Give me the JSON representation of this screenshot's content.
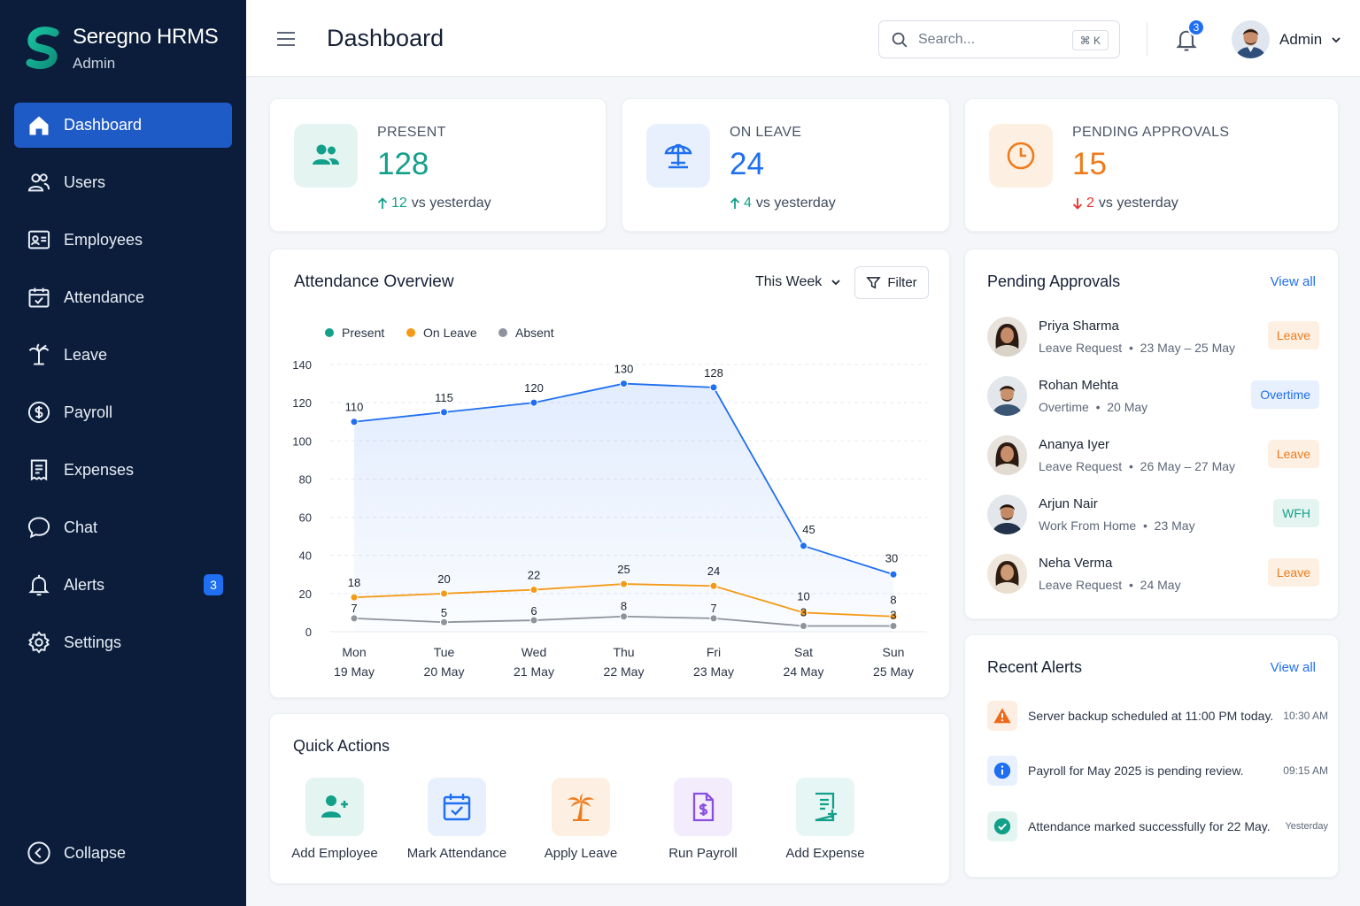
{
  "brand": {
    "name": "Seregno HRMS",
    "role": "Admin"
  },
  "sidebar": {
    "items": [
      {
        "label": "Dashboard",
        "icon": "home-icon",
        "active": true
      },
      {
        "label": "Users",
        "icon": "users-icon"
      },
      {
        "label": "Employees",
        "icon": "id-card-icon"
      },
      {
        "label": "Attendance",
        "icon": "calendar-check-icon"
      },
      {
        "label": "Leave",
        "icon": "palm-tree-icon"
      },
      {
        "label": "Payroll",
        "icon": "dollar-circle-icon"
      },
      {
        "label": "Expenses",
        "icon": "receipt-icon"
      },
      {
        "label": "Chat",
        "icon": "chat-bubble-icon"
      },
      {
        "label": "Alerts",
        "icon": "bell-icon",
        "badge": "3"
      },
      {
        "label": "Settings",
        "icon": "gear-icon"
      }
    ],
    "collapse_label": "Collapse"
  },
  "header": {
    "title": "Dashboard",
    "search_placeholder": "Search...",
    "search_shortcut": "⌘ K",
    "notification_count": "3",
    "user_name": "Admin"
  },
  "stats": [
    {
      "label": "PRESENT",
      "value": "128",
      "delta": "12",
      "delta_dir": "up",
      "delta_text": "vs yesterday",
      "color": "#13a08a"
    },
    {
      "label": "ON LEAVE",
      "value": "24",
      "delta": "4",
      "delta_dir": "up",
      "delta_text": "vs yesterday",
      "color": "#1f6ff2"
    },
    {
      "label": "PENDING APPROVALS",
      "value": "15",
      "delta": "2",
      "delta_dir": "down",
      "delta_text": "vs yesterday",
      "color": "#ef7a1a"
    }
  ],
  "attendance": {
    "title": "Attendance Overview",
    "period": "This Week",
    "filter_label": "Filter"
  },
  "chart_data": {
    "type": "line",
    "categories": [
      "Mon",
      "Tue",
      "Wed",
      "Thu",
      "Fri",
      "Sat",
      "Sun"
    ],
    "dates": [
      "19 May",
      "20 May",
      "21 May",
      "22 May",
      "23 May",
      "24 May",
      "25 May"
    ],
    "series": [
      {
        "name": "Present",
        "values": [
          110,
          115,
          120,
          130,
          128,
          45,
          30
        ],
        "color": "#1f6ff2"
      },
      {
        "name": "On Leave",
        "values": [
          18,
          20,
          22,
          25,
          24,
          10,
          8
        ],
        "color": "#f59a16"
      },
      {
        "name": "Absent",
        "values": [
          7,
          5,
          6,
          8,
          7,
          3,
          3
        ],
        "color": "#8e939c"
      }
    ],
    "legend_colors": [
      "#13a08a",
      "#f59a16",
      "#8e939c"
    ],
    "yticks": [
      0,
      20,
      40,
      60,
      80,
      100,
      120,
      140
    ],
    "ylim": [
      0,
      140
    ],
    "grid": true,
    "legend": "top-left"
  },
  "approvals": {
    "title": "Pending Approvals",
    "view_all": "View all",
    "items": [
      {
        "name": "Priya Sharma",
        "type": "Leave Request",
        "dates": "23 May – 25 May",
        "tag": "Leave"
      },
      {
        "name": "Rohan Mehta",
        "type": "Overtime",
        "dates": "20 May",
        "tag": "Overtime"
      },
      {
        "name": "Ananya Iyer",
        "type": "Leave Request",
        "dates": "26 May – 27 May",
        "tag": "Leave"
      },
      {
        "name": "Arjun Nair",
        "type": "Work From Home",
        "dates": "23 May",
        "tag": "WFH"
      },
      {
        "name": "Neha Verma",
        "type": "Leave Request",
        "dates": "24 May",
        "tag": "Leave"
      }
    ]
  },
  "alerts": {
    "title": "Recent Alerts",
    "view_all": "View all",
    "items": [
      {
        "text": "Server backup scheduled at 11:00 PM today.",
        "time": "10:30 AM",
        "icon": "warning-icon"
      },
      {
        "text": "Payroll for May 2025 is pending review.",
        "time": "09:15 AM",
        "icon": "info-icon"
      },
      {
        "text": "Attendance marked successfully for 22 May.",
        "time": "Yesterday",
        "icon": "check-icon"
      }
    ]
  },
  "quick_actions": {
    "title": "Quick Actions",
    "items": [
      {
        "label": "Add Employee",
        "icon": "user-plus-icon"
      },
      {
        "label": "Mark Attendance",
        "icon": "calendar-check-icon"
      },
      {
        "label": "Apply Leave",
        "icon": "palm-tree-icon"
      },
      {
        "label": "Run Payroll",
        "icon": "payroll-doc-icon"
      },
      {
        "label": "Add Expense",
        "icon": "expense-doc-icon"
      }
    ]
  }
}
